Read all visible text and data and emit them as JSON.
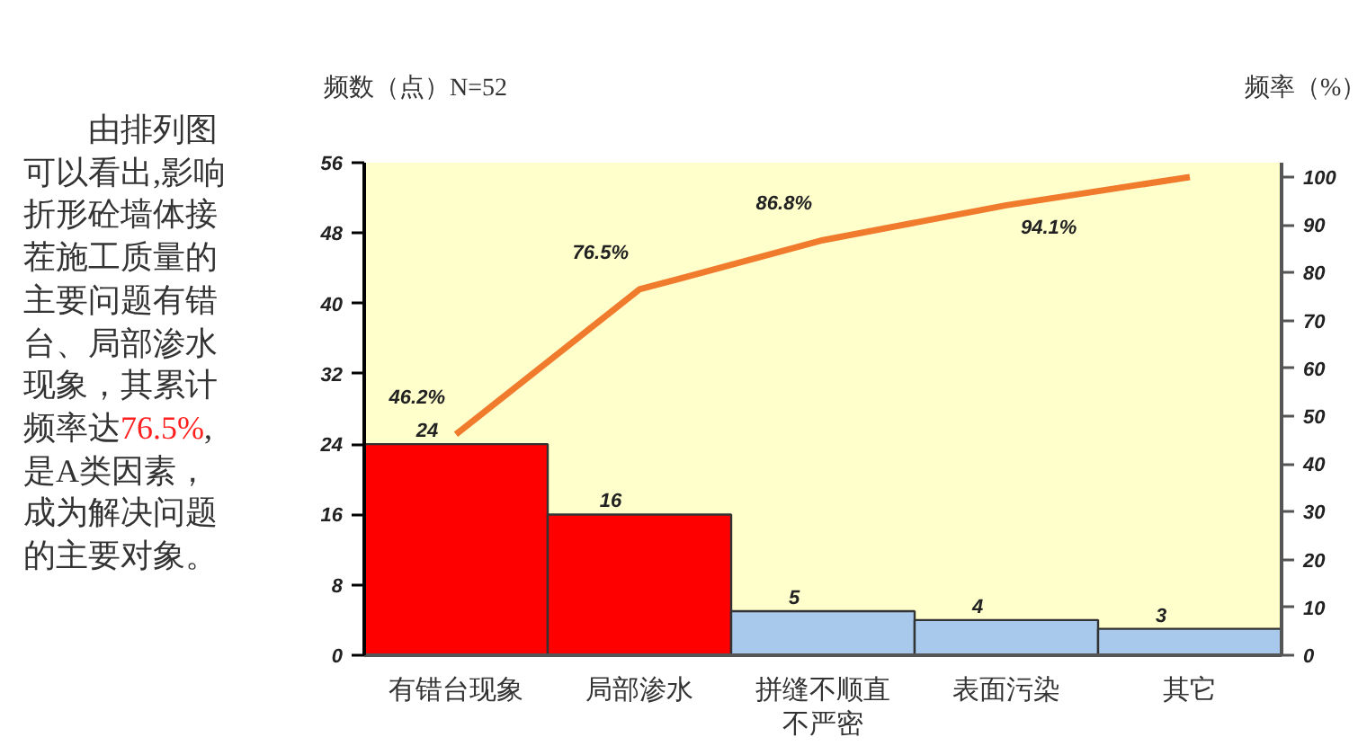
{
  "chart_data": {
    "type": "bar",
    "ylabel": "频数（点）N=52",
    "y2label": "频率（%）",
    "categories": [
      "有错台现象",
      "局部渗水",
      "拼缝不顺直不严密",
      "表面污染",
      "其它"
    ],
    "series": [
      {
        "colors": [
          "#ff0000",
          "#ff0000",
          "#a9c9ec",
          "#a9c9ec",
          "#a9c9ec"
        ],
        "values": [
          24,
          16,
          5,
          4,
          3
        ],
        "value_labels": [
          "24",
          "16",
          "5",
          "4",
          "3"
        ]
      },
      {
        "type": "line",
        "axis": "y2",
        "color": "#f07b2d",
        "values": [
          46.2,
          76.5,
          86.8,
          94.1,
          100
        ],
        "value_labels": [
          "46.2%",
          "76.5%",
          "86.8%",
          "94.1%",
          null
        ]
      }
    ],
    "ylim": [
      0,
      56
    ],
    "yticks": [
      0,
      8,
      16,
      24,
      32,
      40,
      48,
      56
    ],
    "y2lim": [
      0,
      103
    ],
    "y2ticks": [
      0,
      10,
      20,
      30,
      40,
      50,
      60,
      70,
      80,
      90,
      100
    ],
    "line_style": "solid",
    "annotations": [
      "由排列图可以看出,影响折形砼墙体接茬施工质量的主要问题有错台、局部渗水现象，其累计频率达76.5%,是A类因素，成为解决问题的主要对象。"
    ]
  }
}
